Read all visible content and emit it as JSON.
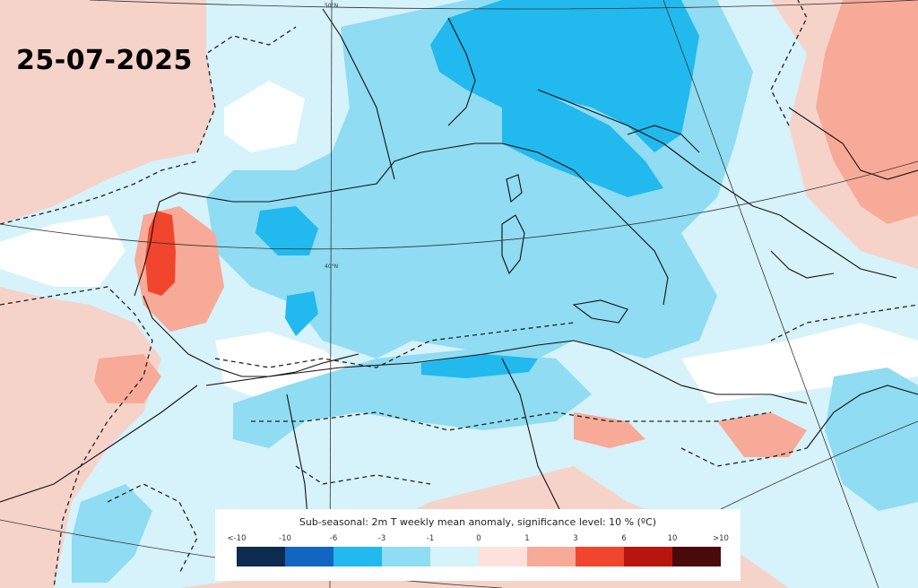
{
  "date_label": "25-07-2025",
  "legend": {
    "title": "Sub-seasonal: 2m T weekly mean anomaly, significance level: 10 % (ºC)",
    "ticks": [
      "<-10",
      "-10",
      "-6",
      "-3",
      "-1",
      "0",
      "1",
      "3",
      "6",
      "10",
      ">10"
    ],
    "colors": [
      "#0d2b4e",
      "#1166c4",
      "#21b9ee",
      "#8fdcf3",
      "#d6f2fb",
      "#fde2dc",
      "#f7aa97",
      "#f2452e",
      "#b8150e",
      "#4a0a0a"
    ]
  },
  "grid_labels": {
    "lat_top": "50°N",
    "lat_mid": "40°N"
  },
  "colors": {
    "background_warm": "#f6d3c9",
    "light_cool": "#d6f2fb",
    "mid_cool": "#8fdcf3",
    "strong_cool": "#21b9ee",
    "warm": "#f7aa97",
    "hot": "#f2452e"
  }
}
